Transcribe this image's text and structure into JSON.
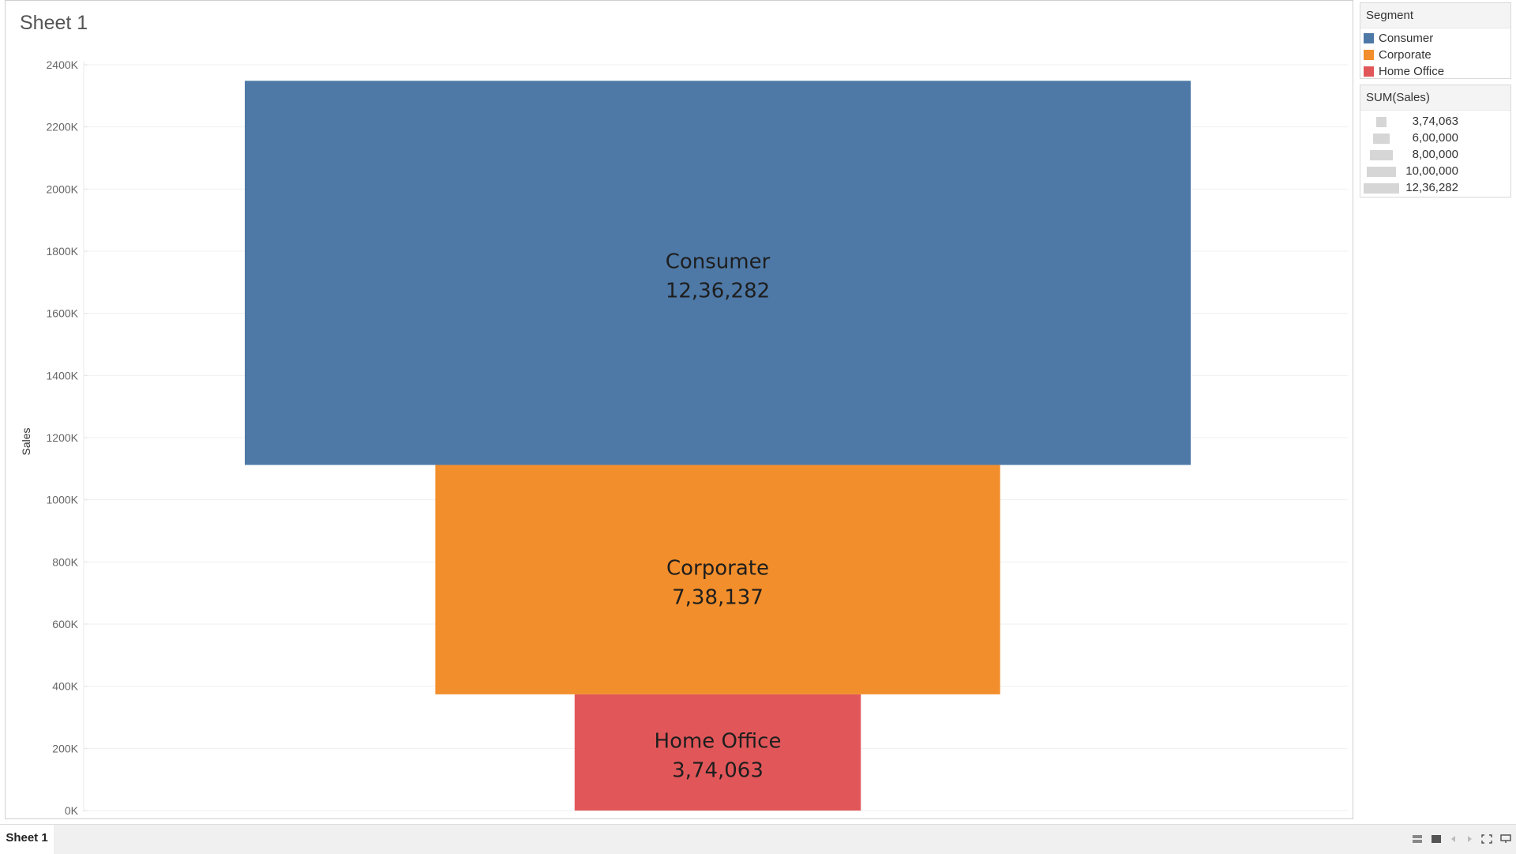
{
  "sheet": {
    "title": "Sheet 1",
    "tab_label": "Sheet 1"
  },
  "legend_color": {
    "title": "Segment",
    "items": [
      {
        "label": "Consumer",
        "color": "#4e79a7"
      },
      {
        "label": "Corporate",
        "color": "#f28e2b"
      },
      {
        "label": "Home Office",
        "color": "#e15759"
      }
    ]
  },
  "legend_size": {
    "title": "SUM(Sales)",
    "items": [
      {
        "label": "3,74,063",
        "value": 374063
      },
      {
        "label": "6,00,000",
        "value": 600000
      },
      {
        "label": "8,00,000",
        "value": 800000
      },
      {
        "label": "10,00,000",
        "value": 1000000
      },
      {
        "label": "12,36,282",
        "value": 1236282
      }
    ]
  },
  "chart_data": {
    "type": "bar",
    "subtype": "stacked-funnel",
    "ylabel": "Sales",
    "ylim": [
      0,
      2400000
    ],
    "yticks": [
      "0K",
      "200K",
      "400K",
      "600K",
      "800K",
      "1000K",
      "1200K",
      "1400K",
      "1600K",
      "1800K",
      "2000K",
      "2200K",
      "2400K"
    ],
    "ytick_values": [
      0,
      200000,
      400000,
      600000,
      800000,
      1000000,
      1200000,
      1400000,
      1600000,
      1800000,
      2000000,
      2200000,
      2400000
    ],
    "grid": true,
    "series": [
      {
        "name": "Home Office",
        "value": 374063,
        "label": "3,74,063",
        "color": "#e15759"
      },
      {
        "name": "Corporate",
        "value": 738137,
        "label": "7,38,137",
        "color": "#f28e2b"
      },
      {
        "name": "Consumer",
        "value": 1236282,
        "label": "12,36,282",
        "color": "#4e79a7"
      }
    ]
  },
  "toolbar": {
    "icons": [
      "sheet-sorter-icon",
      "filmstrip-icon",
      "previous-icon",
      "next-icon",
      "fullscreen-icon",
      "presentation-icon"
    ]
  }
}
